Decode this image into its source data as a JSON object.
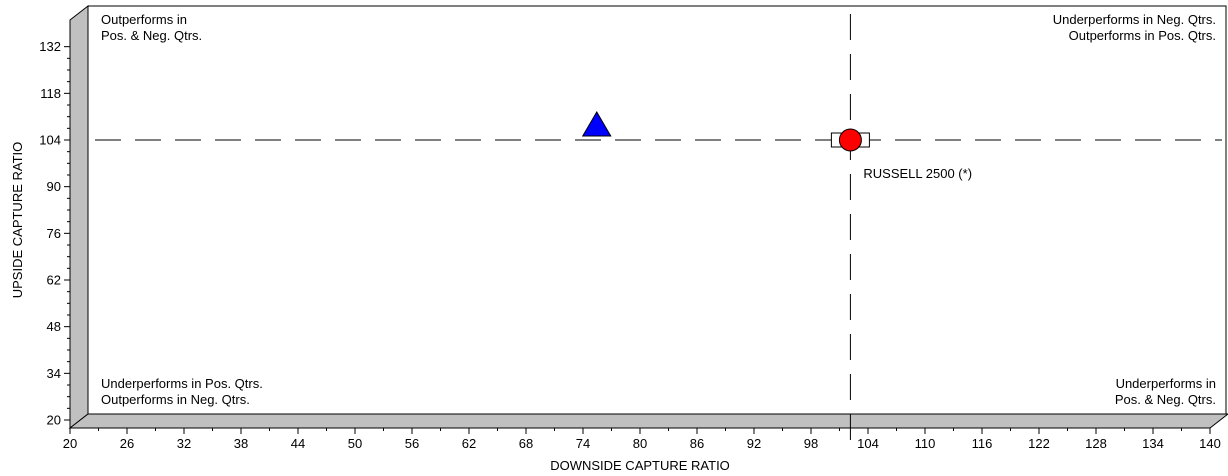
{
  "chart_data": {
    "type": "scatter",
    "title": "",
    "xlabel": "DOWNSIDE CAPTURE RATIO",
    "ylabel": "UPSIDE CAPTURE RATIO",
    "xlim": [
      20,
      140
    ],
    "ylim": [
      20,
      140
    ],
    "x_ticks": [
      20,
      26,
      32,
      38,
      44,
      50,
      56,
      62,
      68,
      74,
      80,
      86,
      92,
      98,
      104,
      110,
      116,
      122,
      128,
      134,
      140
    ],
    "y_ticks": [
      20,
      34,
      48,
      62,
      76,
      90,
      104,
      118,
      132
    ],
    "reference_lines": {
      "x": 101.2,
      "y": 104
    },
    "quadrant_labels": {
      "top_left": [
        "Outperforms in",
        "Pos. & Neg. Qtrs."
      ],
      "top_right": [
        "Underperforms in Neg. Qtrs.",
        "Outperforms in Pos. Qtrs."
      ],
      "bottom_left": [
        "Underperforms in Pos. Qtrs.",
        "Outperforms in Neg. Qtrs."
      ],
      "bottom_right": [
        "Underperforms in",
        "Pos. & Neg. Qtrs."
      ]
    },
    "points": [
      {
        "name": "",
        "x": 74.5,
        "y": 108.5,
        "marker": "triangle",
        "color": "#0000ff"
      },
      {
        "name": "",
        "x": 101.2,
        "y": 104,
        "marker": "circle",
        "color": "#ff0000"
      }
    ],
    "annotations": [
      {
        "text": "RUSSELL 2500 (*)",
        "x": 101.2,
        "y": 104
      }
    ],
    "grid": false
  }
}
